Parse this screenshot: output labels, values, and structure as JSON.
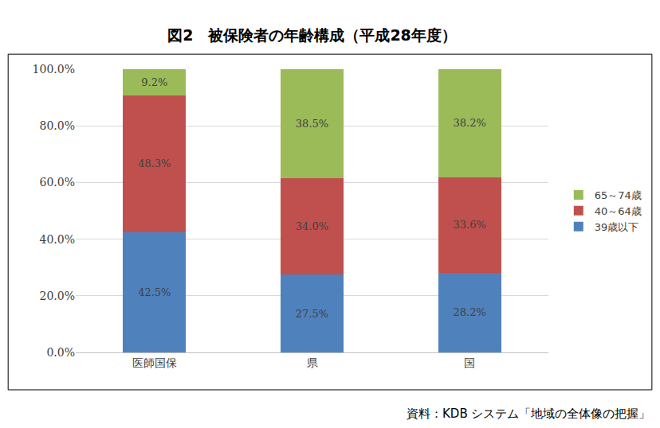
{
  "chart_data": {
    "type": "bar",
    "title": "図2　被保険者の年齢構成（平成28年度）",
    "annotations": [
      "資料：KDB システム「地域の全体像の把握」"
    ],
    "categories": [
      "医師国保",
      "県",
      "国"
    ],
    "stacked": true,
    "data_labels": true,
    "grid": true,
    "legend": "right",
    "ylim": [
      0,
      100
    ],
    "yticks": [
      {
        "value": 0,
        "label": "0.0%"
      },
      {
        "value": 20,
        "label": "20.0%"
      },
      {
        "value": 40,
        "label": "40.0%"
      },
      {
        "value": 60,
        "label": "60.0%"
      },
      {
        "value": 80,
        "label": "80.0%"
      },
      {
        "value": 100,
        "label": "100.0%"
      }
    ],
    "series": [
      {
        "name": "39歳以下",
        "color": "#4f81bd",
        "values": [
          42.5,
          27.5,
          28.2
        ],
        "value_labels": [
          "42.5%",
          "27.5%",
          "28.2%"
        ]
      },
      {
        "name": "40～64歳",
        "color": "#c0504d",
        "values": [
          48.3,
          34.0,
          33.6
        ],
        "value_labels": [
          "48.3%",
          "34.0%",
          "33.6%"
        ]
      },
      {
        "name": "65～74歳",
        "color": "#9bbb59",
        "values": [
          9.2,
          38.5,
          38.2
        ],
        "value_labels": [
          "9.2%",
          "38.5%",
          "38.2%"
        ]
      }
    ]
  }
}
